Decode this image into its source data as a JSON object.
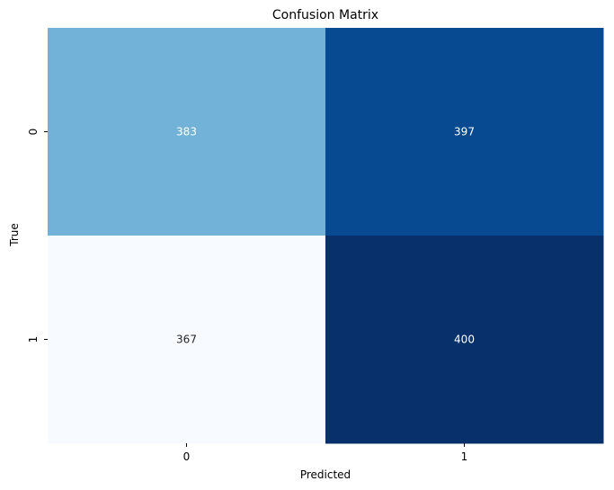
{
  "chart_data": {
    "type": "heatmap",
    "title": "Confusion Matrix",
    "xlabel": "Predicted",
    "ylabel": "True",
    "x_categories": [
      "0",
      "1"
    ],
    "y_categories": [
      "0",
      "1"
    ],
    "values": [
      [
        383,
        397
      ],
      [
        367,
        400
      ]
    ],
    "colormap": "Blues",
    "colorbar": false,
    "cell_colors": [
      [
        "#72b2d8",
        "#084a91"
      ],
      [
        "#f7fbff",
        "#08306b"
      ]
    ],
    "annotation_colors": [
      [
        "#ffffff",
        "#ffffff"
      ],
      [
        "#262626",
        "#ffffff"
      ]
    ]
  }
}
